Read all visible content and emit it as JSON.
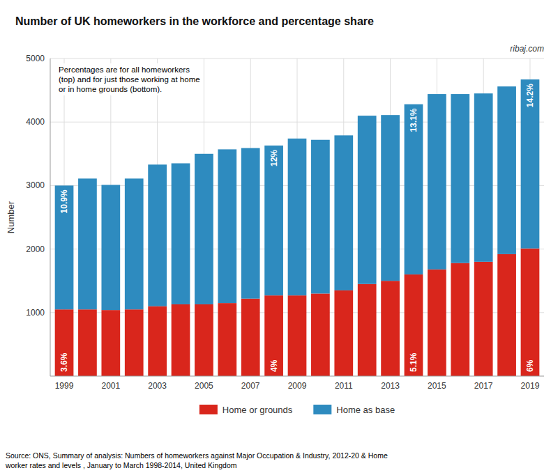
{
  "chart_data": {
    "type": "bar",
    "stacked": true,
    "title": "Number of UK homeworkers in the workforce and percentage share",
    "y_label": "Number",
    "annotations": [
      "ribaj.com",
      "Percentages are for all homeworkers\n(top) and for just those working at home\nor in home grounds (bottom)."
    ],
    "source": "Source: ONS, Summary of analysis: Numbers of homeworkers against Major Occupation & Industry, 2012-20 & Home\nworker rates and levels , January to March 1998-2014, United Kingdom",
    "categories": [
      "1999",
      null,
      "2001",
      null,
      "2003",
      null,
      "2005",
      null,
      "2007",
      null,
      "2009",
      null,
      "2011",
      null,
      "2013",
      null,
      "2015",
      null,
      "2017",
      null,
      "2019"
    ],
    "series": [
      {
        "name": "Home or grounds",
        "color": "#d9261c",
        "values": [
          1050,
          1050,
          1040,
          1050,
          1100,
          1130,
          1130,
          1150,
          1220,
          1270,
          1270,
          1300,
          1350,
          1450,
          1500,
          1600,
          1680,
          1780,
          1800,
          1920,
          2010
        ],
        "share_labels": [
          "3.6%",
          null,
          null,
          null,
          null,
          null,
          null,
          null,
          null,
          "4%",
          null,
          null,
          null,
          null,
          null,
          "5.1%",
          null,
          null,
          null,
          null,
          "6%"
        ]
      },
      {
        "name": "Home as base",
        "color": "#2e8bbf",
        "values": [
          1950,
          2060,
          1970,
          2060,
          2230,
          2220,
          2370,
          2420,
          2370,
          2360,
          2470,
          2420,
          2440,
          2650,
          2610,
          2680,
          2760,
          2660,
          2650,
          2640,
          2660
        ],
        "share_labels": [
          "10.9%",
          null,
          null,
          null,
          null,
          null,
          null,
          null,
          null,
          "12%",
          null,
          null,
          null,
          null,
          null,
          "13.1%",
          null,
          null,
          null,
          null,
          "14.2%"
        ]
      }
    ],
    "ylim": [
      0,
      5000
    ],
    "yticks": [
      1000,
      2000,
      3000,
      4000,
      5000
    ],
    "grid": true,
    "legend": "bottom"
  }
}
